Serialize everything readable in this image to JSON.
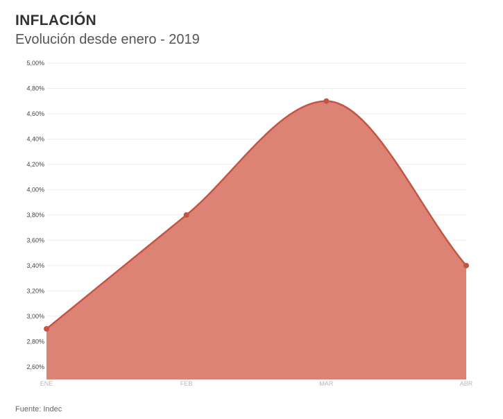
{
  "header": {
    "title": "INFLACIÓN",
    "subtitle": "Evolución desde enero - 2019"
  },
  "footer": {
    "source": "Fuente: Indec"
  },
  "colors": {
    "fill": "#dc8376",
    "line": "#c55445",
    "grid": "#eeeeee"
  },
  "chart_data": {
    "type": "area",
    "title": "INFLACIÓN",
    "subtitle": "Evolución desde enero - 2019",
    "categories": [
      "ENE",
      "FEB",
      "MAR",
      "ABR"
    ],
    "values": [
      2.9,
      3.8,
      4.7,
      3.4
    ],
    "ylim": [
      2.5,
      5.0
    ],
    "yticks": [
      2.6,
      2.8,
      3.0,
      3.2,
      3.4,
      3.6,
      3.8,
      4.0,
      4.2,
      4.4,
      4.6,
      4.8,
      5.0
    ],
    "ytick_labels": [
      "2,60%",
      "2,80%",
      "3,00%",
      "3,20%",
      "3,40%",
      "3,60%",
      "3,80%",
      "4,00%",
      "4,20%",
      "4,40%",
      "4,60%",
      "4,80%",
      "5,00%"
    ],
    "grid": true,
    "curve": "smooth",
    "markers": true,
    "legend": "none"
  }
}
